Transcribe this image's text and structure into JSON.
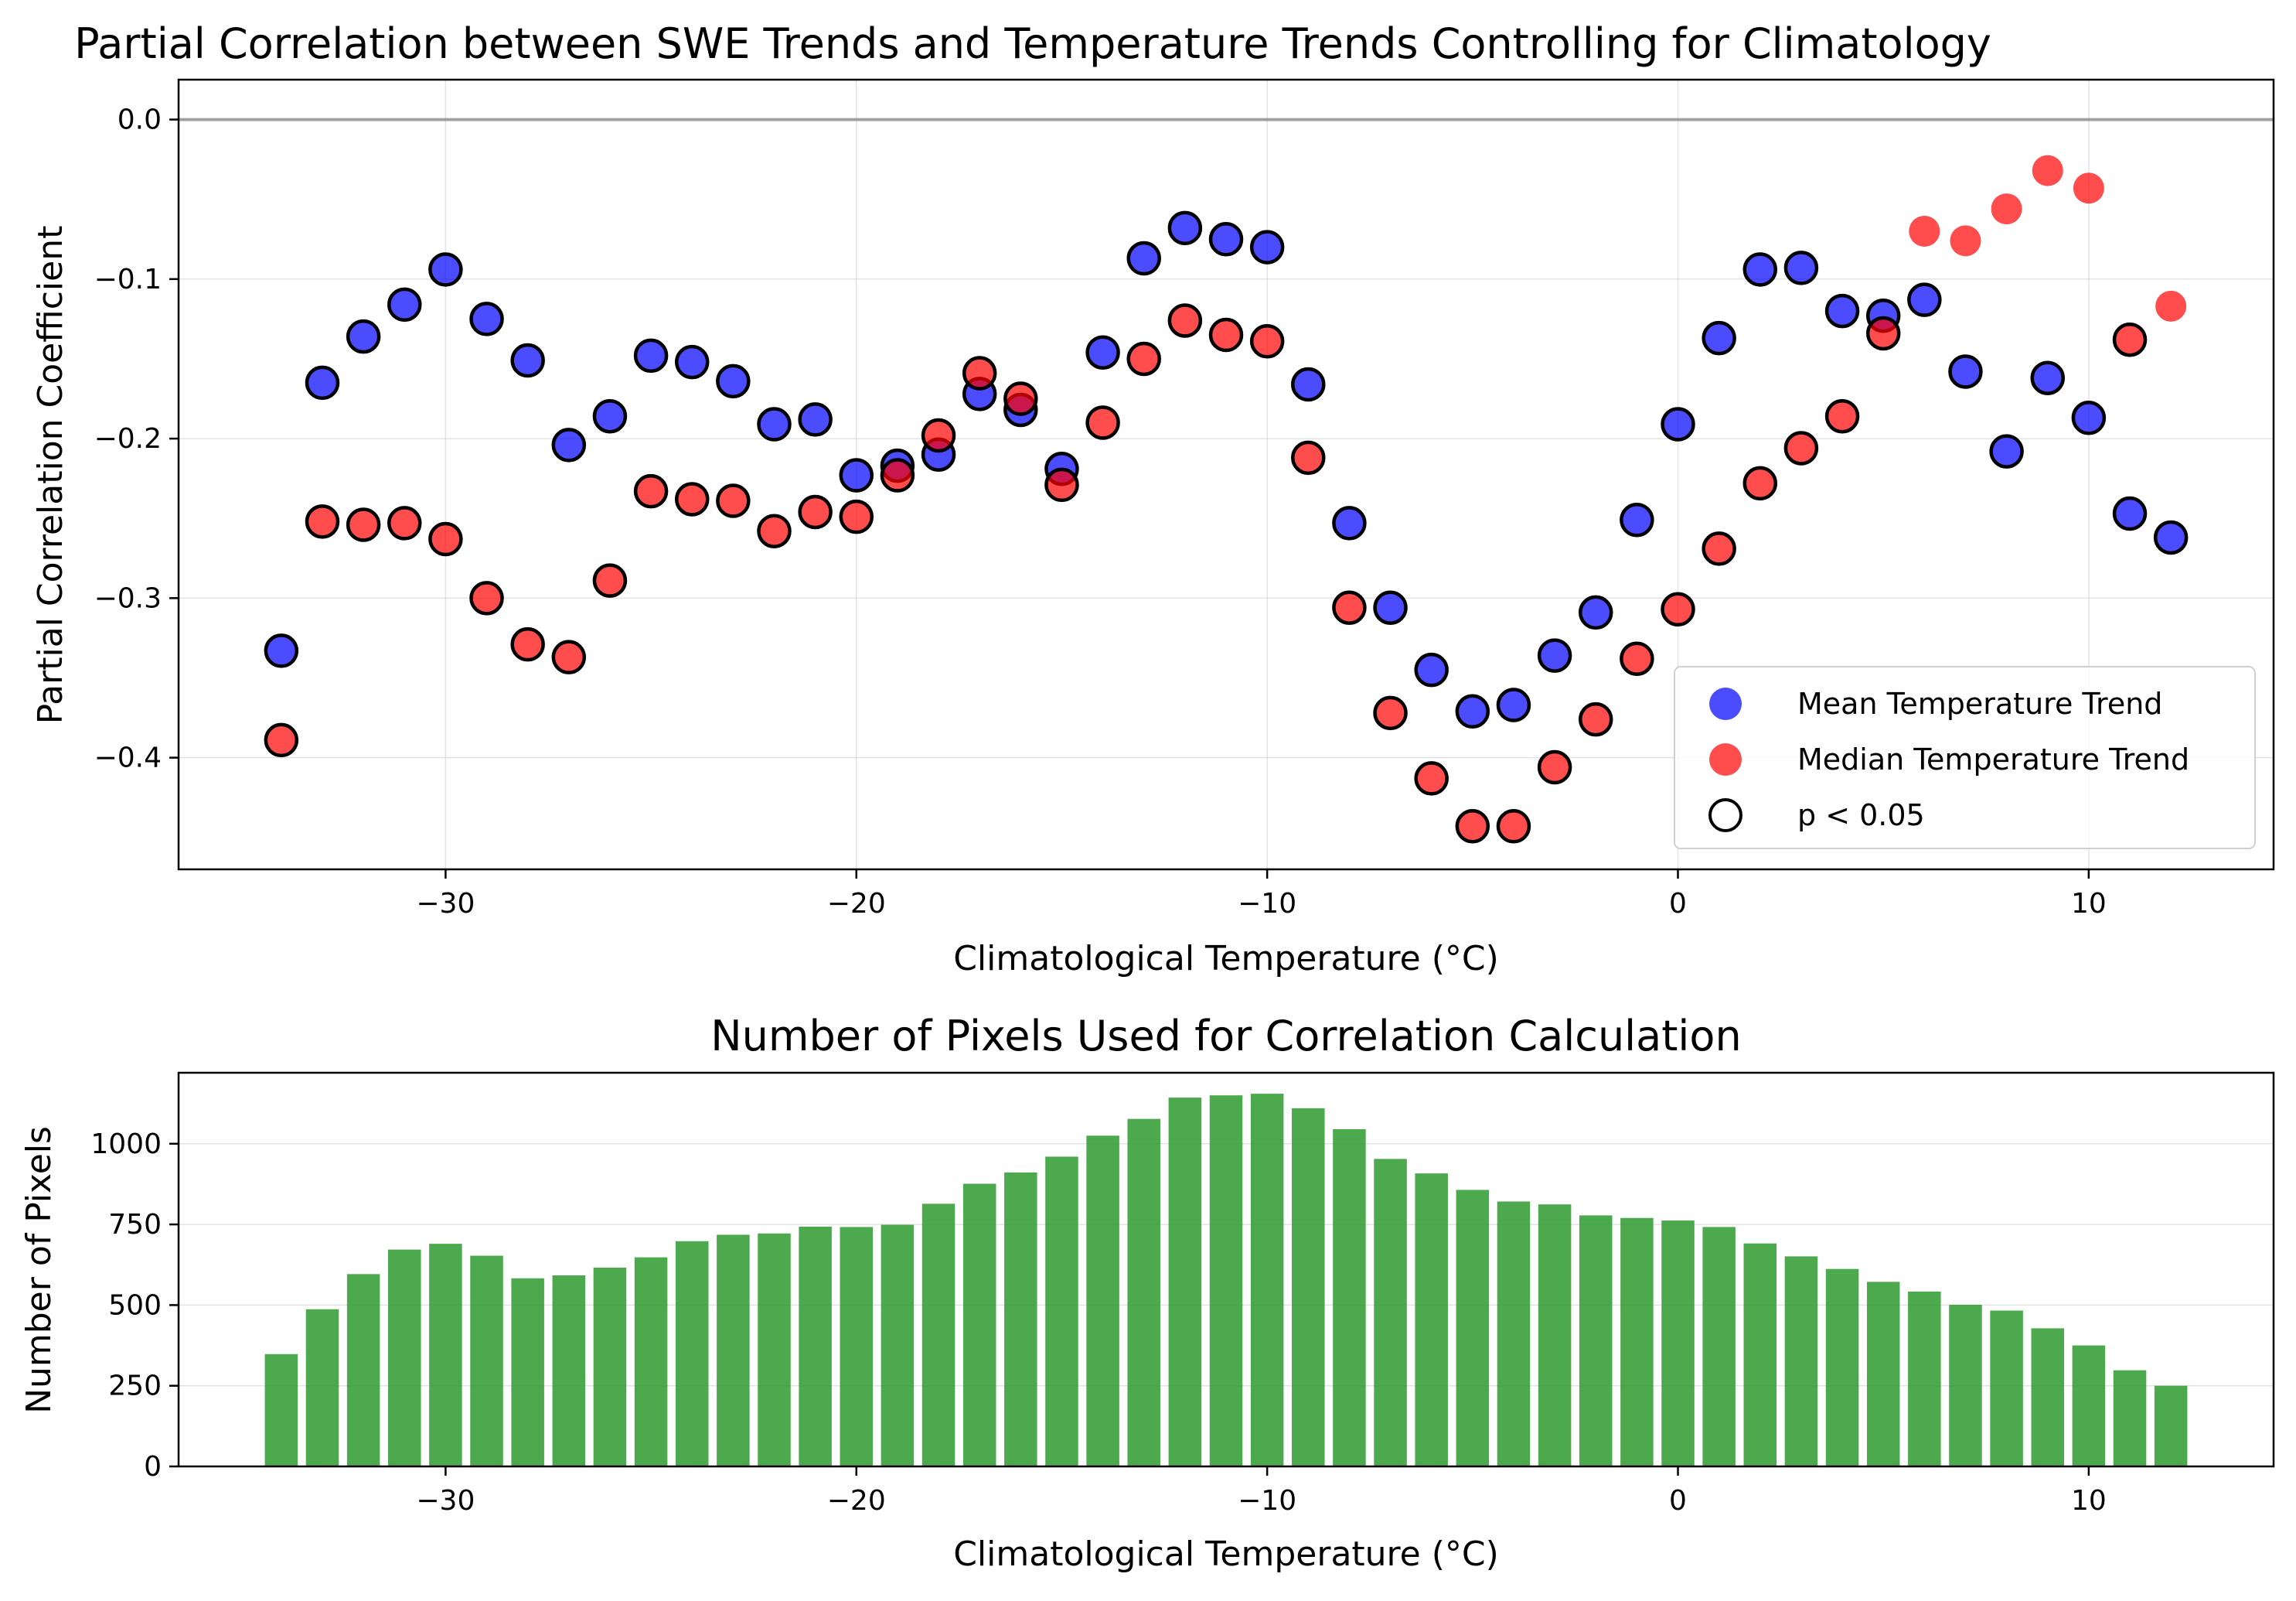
{
  "colors": {
    "mean": "#0000ff",
    "median": "#ff0000",
    "bars": "#2e9a2e",
    "zero_line": "#808080"
  },
  "chart_data": [
    {
      "type": "scatter",
      "title": "Partial Correlation between SWE Trends and Temperature Trends Controlling for Climatology",
      "xlabel": "Climatological Temperature (°C)",
      "ylabel": "Partial Correlation Coefficient",
      "xlim": [
        -36.5,
        14.5
      ],
      "ylim": [
        -0.47,
        0.025
      ],
      "xticks": [
        -30,
        -20,
        -10,
        0,
        10
      ],
      "xtick_labels": [
        "−30",
        "−20",
        "−10",
        "0",
        "10"
      ],
      "yticks": [
        0.0,
        -0.1,
        -0.2,
        -0.3,
        -0.4
      ],
      "ytick_labels": [
        "0.0",
        "−0.1",
        "−0.2",
        "−0.3",
        "−0.4"
      ],
      "grid": true,
      "reference_line_y": 0.0,
      "legend_position": "lower right",
      "legend": [
        "Mean Temperature Trend",
        "Median Temperature Trend",
        "p < 0.05"
      ],
      "x": [
        -34,
        -33,
        -32,
        -31,
        -30,
        -29,
        -28,
        -27,
        -26,
        -25,
        -24,
        -23,
        -22,
        -21,
        -20,
        -19,
        -18,
        -17,
        -16,
        -15,
        -14,
        -13,
        -12,
        -11,
        -10,
        -9,
        -8,
        -7,
        -6,
        -5,
        -4,
        -3,
        -2,
        -1,
        0,
        1,
        2,
        3,
        4,
        5,
        6,
        7,
        8,
        9,
        10,
        11,
        12
      ],
      "series": [
        {
          "name": "Mean Temperature Trend",
          "values": [
            -0.333,
            -0.165,
            -0.136,
            -0.116,
            -0.094,
            -0.125,
            -0.151,
            -0.204,
            -0.186,
            -0.148,
            -0.152,
            -0.164,
            -0.191,
            -0.188,
            -0.223,
            -0.217,
            -0.21,
            -0.172,
            -0.182,
            -0.219,
            -0.146,
            -0.087,
            -0.068,
            -0.075,
            -0.08,
            -0.166,
            -0.253,
            -0.306,
            -0.345,
            -0.371,
            -0.367,
            -0.336,
            -0.309,
            -0.251,
            -0.191,
            -0.137,
            -0.094,
            -0.093,
            -0.12,
            -0.123,
            -0.113,
            -0.158,
            -0.208,
            -0.162,
            -0.187,
            -0.247,
            -0.262
          ],
          "significant": [
            true,
            true,
            true,
            true,
            true,
            true,
            true,
            true,
            true,
            true,
            true,
            true,
            true,
            true,
            true,
            true,
            true,
            true,
            true,
            true,
            true,
            true,
            true,
            true,
            true,
            true,
            true,
            true,
            true,
            true,
            true,
            true,
            true,
            true,
            true,
            true,
            true,
            true,
            true,
            true,
            true,
            true,
            true,
            true,
            true,
            true,
            true
          ]
        },
        {
          "name": "Median Temperature Trend",
          "values": [
            -0.389,
            -0.252,
            -0.254,
            -0.253,
            -0.263,
            -0.3,
            -0.329,
            -0.337,
            -0.289,
            -0.233,
            -0.238,
            -0.239,
            -0.258,
            -0.246,
            -0.249,
            -0.223,
            -0.198,
            -0.159,
            -0.175,
            -0.229,
            -0.19,
            -0.15,
            -0.126,
            -0.135,
            -0.139,
            -0.212,
            -0.306,
            -0.372,
            -0.413,
            -0.443,
            -0.443,
            -0.406,
            -0.376,
            -0.338,
            -0.307,
            -0.269,
            -0.228,
            -0.206,
            -0.186,
            -0.134,
            -0.07,
            -0.076,
            -0.056,
            -0.032,
            -0.043,
            -0.138,
            -0.117
          ],
          "significant": [
            true,
            true,
            true,
            true,
            true,
            true,
            true,
            true,
            true,
            true,
            true,
            true,
            true,
            true,
            true,
            true,
            true,
            true,
            true,
            true,
            true,
            true,
            true,
            true,
            true,
            true,
            true,
            true,
            true,
            true,
            true,
            true,
            true,
            true,
            true,
            true,
            true,
            true,
            true,
            true,
            false,
            false,
            false,
            false,
            false,
            true,
            false
          ]
        }
      ]
    },
    {
      "type": "bar",
      "title": "Number of Pixels Used for Correlation Calculation",
      "xlabel": "Climatological Temperature (°C)",
      "ylabel": "Number of Pixels",
      "xlim": [
        -36.5,
        14.5
      ],
      "ylim": [
        0,
        1220
      ],
      "xticks": [
        -30,
        -20,
        -10,
        0,
        10
      ],
      "xtick_labels": [
        "−30",
        "−20",
        "−10",
        "0",
        "10"
      ],
      "yticks": [
        0,
        250,
        500,
        750,
        1000
      ],
      "ytick_labels": [
        "0",
        "250",
        "500",
        "750",
        "1000"
      ],
      "grid": true,
      "x": [
        -34,
        -33,
        -32,
        -31,
        -30,
        -29,
        -28,
        -27,
        -26,
        -25,
        -24,
        -23,
        -22,
        -21,
        -20,
        -19,
        -18,
        -17,
        -16,
        -15,
        -14,
        -13,
        -12,
        -11,
        -10,
        -9,
        -8,
        -7,
        -6,
        -5,
        -4,
        -3,
        -2,
        -1,
        0,
        1,
        2,
        3,
        4,
        5,
        6,
        7,
        8,
        9,
        10,
        11,
        12
      ],
      "values": [
        348,
        487,
        596,
        672,
        690,
        653,
        583,
        592,
        616,
        648,
        698,
        718,
        722,
        743,
        742,
        749,
        814,
        876,
        911,
        960,
        1025,
        1077,
        1143,
        1150,
        1155,
        1110,
        1045,
        953,
        908,
        857,
        821,
        812,
        778,
        770,
        762,
        742,
        691,
        651,
        612,
        572,
        542,
        501,
        483,
        428,
        375,
        298,
        250
      ]
    }
  ]
}
